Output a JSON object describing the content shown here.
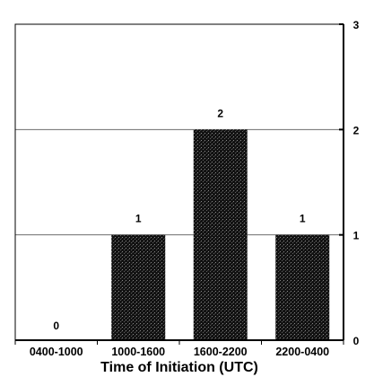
{
  "chart_data": {
    "type": "bar",
    "categories": [
      "0400-1000",
      "1000-1600",
      "1600-2200",
      "2200-0400"
    ],
    "values": [
      0,
      1,
      2,
      1
    ],
    "data_labels": [
      "0",
      "1",
      "2",
      "1"
    ],
    "xlabel": "Time of Initiation (UTC)",
    "ylabel": "",
    "ylim": [
      0,
      3
    ],
    "yticks": [
      0,
      1,
      2,
      3
    ],
    "ytick_labels": [
      "0",
      "1",
      "2",
      "3"
    ],
    "y_axis_side": "right",
    "grid": true,
    "bar_color": "#1a1a1a",
    "grid_color": "#6d6d6d"
  }
}
